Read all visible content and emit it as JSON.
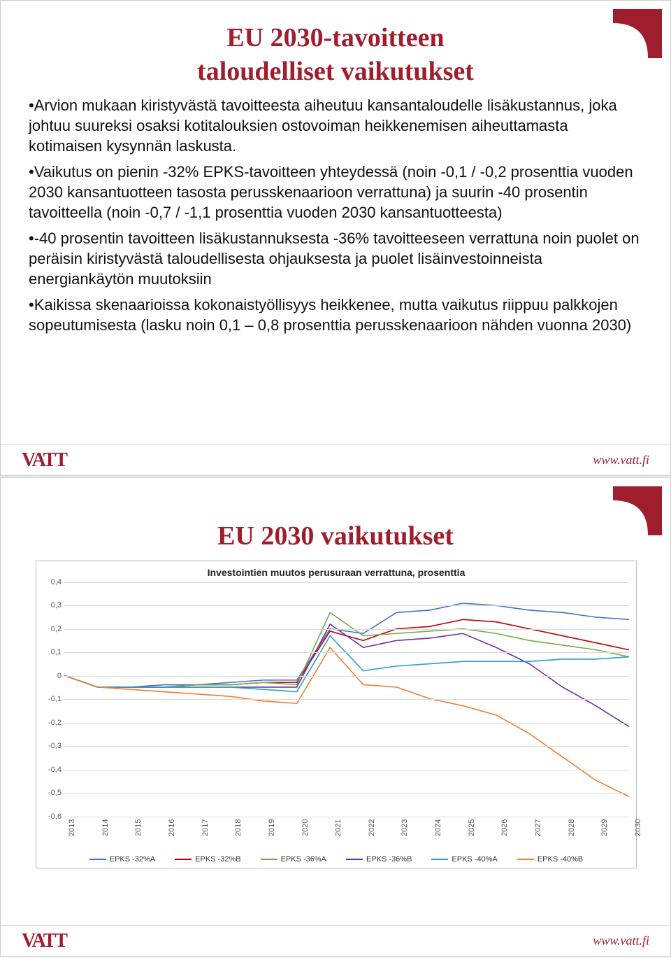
{
  "slide1": {
    "title_line1": "EU 2030-tavoitteen",
    "title_line2": "taloudelliset vaikutukset",
    "bullet1": "•Arvion mukaan kiristyvästä tavoitteesta aiheutuu kansantaloudelle lisäkustannus, joka johtuu suureksi osaksi kotitalouksien ostovoiman heikkenemisen aiheuttamasta kotimaisen kysynnän laskusta.",
    "bullet2": "•Vaikutus on pienin -32% EPKS-tavoitteen yhteydessä (noin -0,1 /  -0,2 prosenttia vuoden 2030 kansantuotteen tasosta perusskenaarioon verrattuna) ja suurin -40 prosentin tavoitteella (noin -0,7 / -1,1 prosenttia vuoden 2030 kansantuotteesta)",
    "bullet3": "•-40 prosentin tavoitteen lisäkustannuksesta -36% tavoitteeseen verrattuna noin puolet on peräisin kiristyvästä taloudellisesta ohjauksesta ja puolet lisäinvestoinneista energiankäytön muutoksiin",
    "bullet4": "•Kaikissa skenaarioissa kokonaistyöllisyys heikkenee, mutta vaikutus riippuu palkkojen sopeutumisesta (lasku noin 0,1 – 0,8 prosenttia perusskenaarioon nähden vuonna 2030)"
  },
  "slide2": {
    "title": "EU 2030 vaikutukset",
    "chart": {
      "type": "line",
      "subtitle": "Investointien muutos perusuraan verrattuna, prosenttia",
      "background_color": "#ffffff",
      "grid_color": "#d9d9d9",
      "border_color": "#bbbbbb",
      "ylim": [
        -0.6,
        0.4
      ],
      "ytick_step": 0.1,
      "yticks": [
        "0,4",
        "0,3",
        "0,2",
        "0,1",
        "0",
        "-0,1",
        "-0,2",
        "-0,3",
        "-0,4",
        "-0,5",
        "-0,6"
      ],
      "xticks": [
        "2013",
        "2014",
        "2015",
        "2016",
        "2017",
        "2018",
        "2019",
        "2020",
        "2021",
        "2022",
        "2023",
        "2024",
        "2025",
        "2026",
        "2027",
        "2028",
        "2029",
        "2030"
      ],
      "xlim": [
        2013,
        2030
      ],
      "line_width": 1.6,
      "label_fontsize": 11,
      "subtitle_fontsize": 14,
      "series": [
        {
          "name": "EPKS -32%A",
          "color": "#4472c4",
          "values": [
            0,
            -0.05,
            -0.05,
            -0.04,
            -0.04,
            -0.03,
            -0.02,
            -0.02,
            0.2,
            0.18,
            0.27,
            0.28,
            0.31,
            0.3,
            0.28,
            0.27,
            0.25,
            0.24
          ]
        },
        {
          "name": "EPKS -32%B",
          "color": "#c00000",
          "values": [
            0,
            -0.05,
            -0.05,
            -0.05,
            -0.04,
            -0.04,
            -0.03,
            -0.03,
            0.19,
            0.15,
            0.2,
            0.21,
            0.24,
            0.23,
            0.2,
            0.17,
            0.14,
            0.11
          ]
        },
        {
          "name": "EPKS -36%A",
          "color": "#70ad47",
          "values": [
            0,
            -0.05,
            -0.05,
            -0.05,
            -0.04,
            -0.04,
            -0.03,
            -0.04,
            0.27,
            0.17,
            0.18,
            0.19,
            0.2,
            0.18,
            0.15,
            0.13,
            0.11,
            0.08
          ]
        },
        {
          "name": "EPKS -36%B",
          "color": "#7030a0",
          "values": [
            0,
            -0.05,
            -0.05,
            -0.05,
            -0.05,
            -0.05,
            -0.05,
            -0.05,
            0.22,
            0.12,
            0.15,
            0.16,
            0.18,
            0.12,
            0.05,
            -0.05,
            -0.13,
            -0.22
          ]
        },
        {
          "name": "EPKS -40%A",
          "color": "#2e9cca",
          "values": [
            0,
            -0.05,
            -0.05,
            -0.05,
            -0.05,
            -0.05,
            -0.06,
            -0.07,
            0.17,
            0.02,
            0.04,
            0.05,
            0.06,
            0.06,
            0.06,
            0.07,
            0.07,
            0.08
          ]
        },
        {
          "name": "EPKS -40%B",
          "color": "#ed7d31",
          "values": [
            0,
            -0.05,
            -0.06,
            -0.07,
            -0.08,
            -0.09,
            -0.11,
            -0.12,
            0.12,
            -0.04,
            -0.05,
            -0.1,
            -0.13,
            -0.17,
            -0.25,
            -0.35,
            -0.45,
            -0.52
          ]
        }
      ]
    }
  },
  "footer": {
    "logo": "VATT",
    "url": "www.vatt.fi"
  },
  "corner_color": "#a01d2d"
}
